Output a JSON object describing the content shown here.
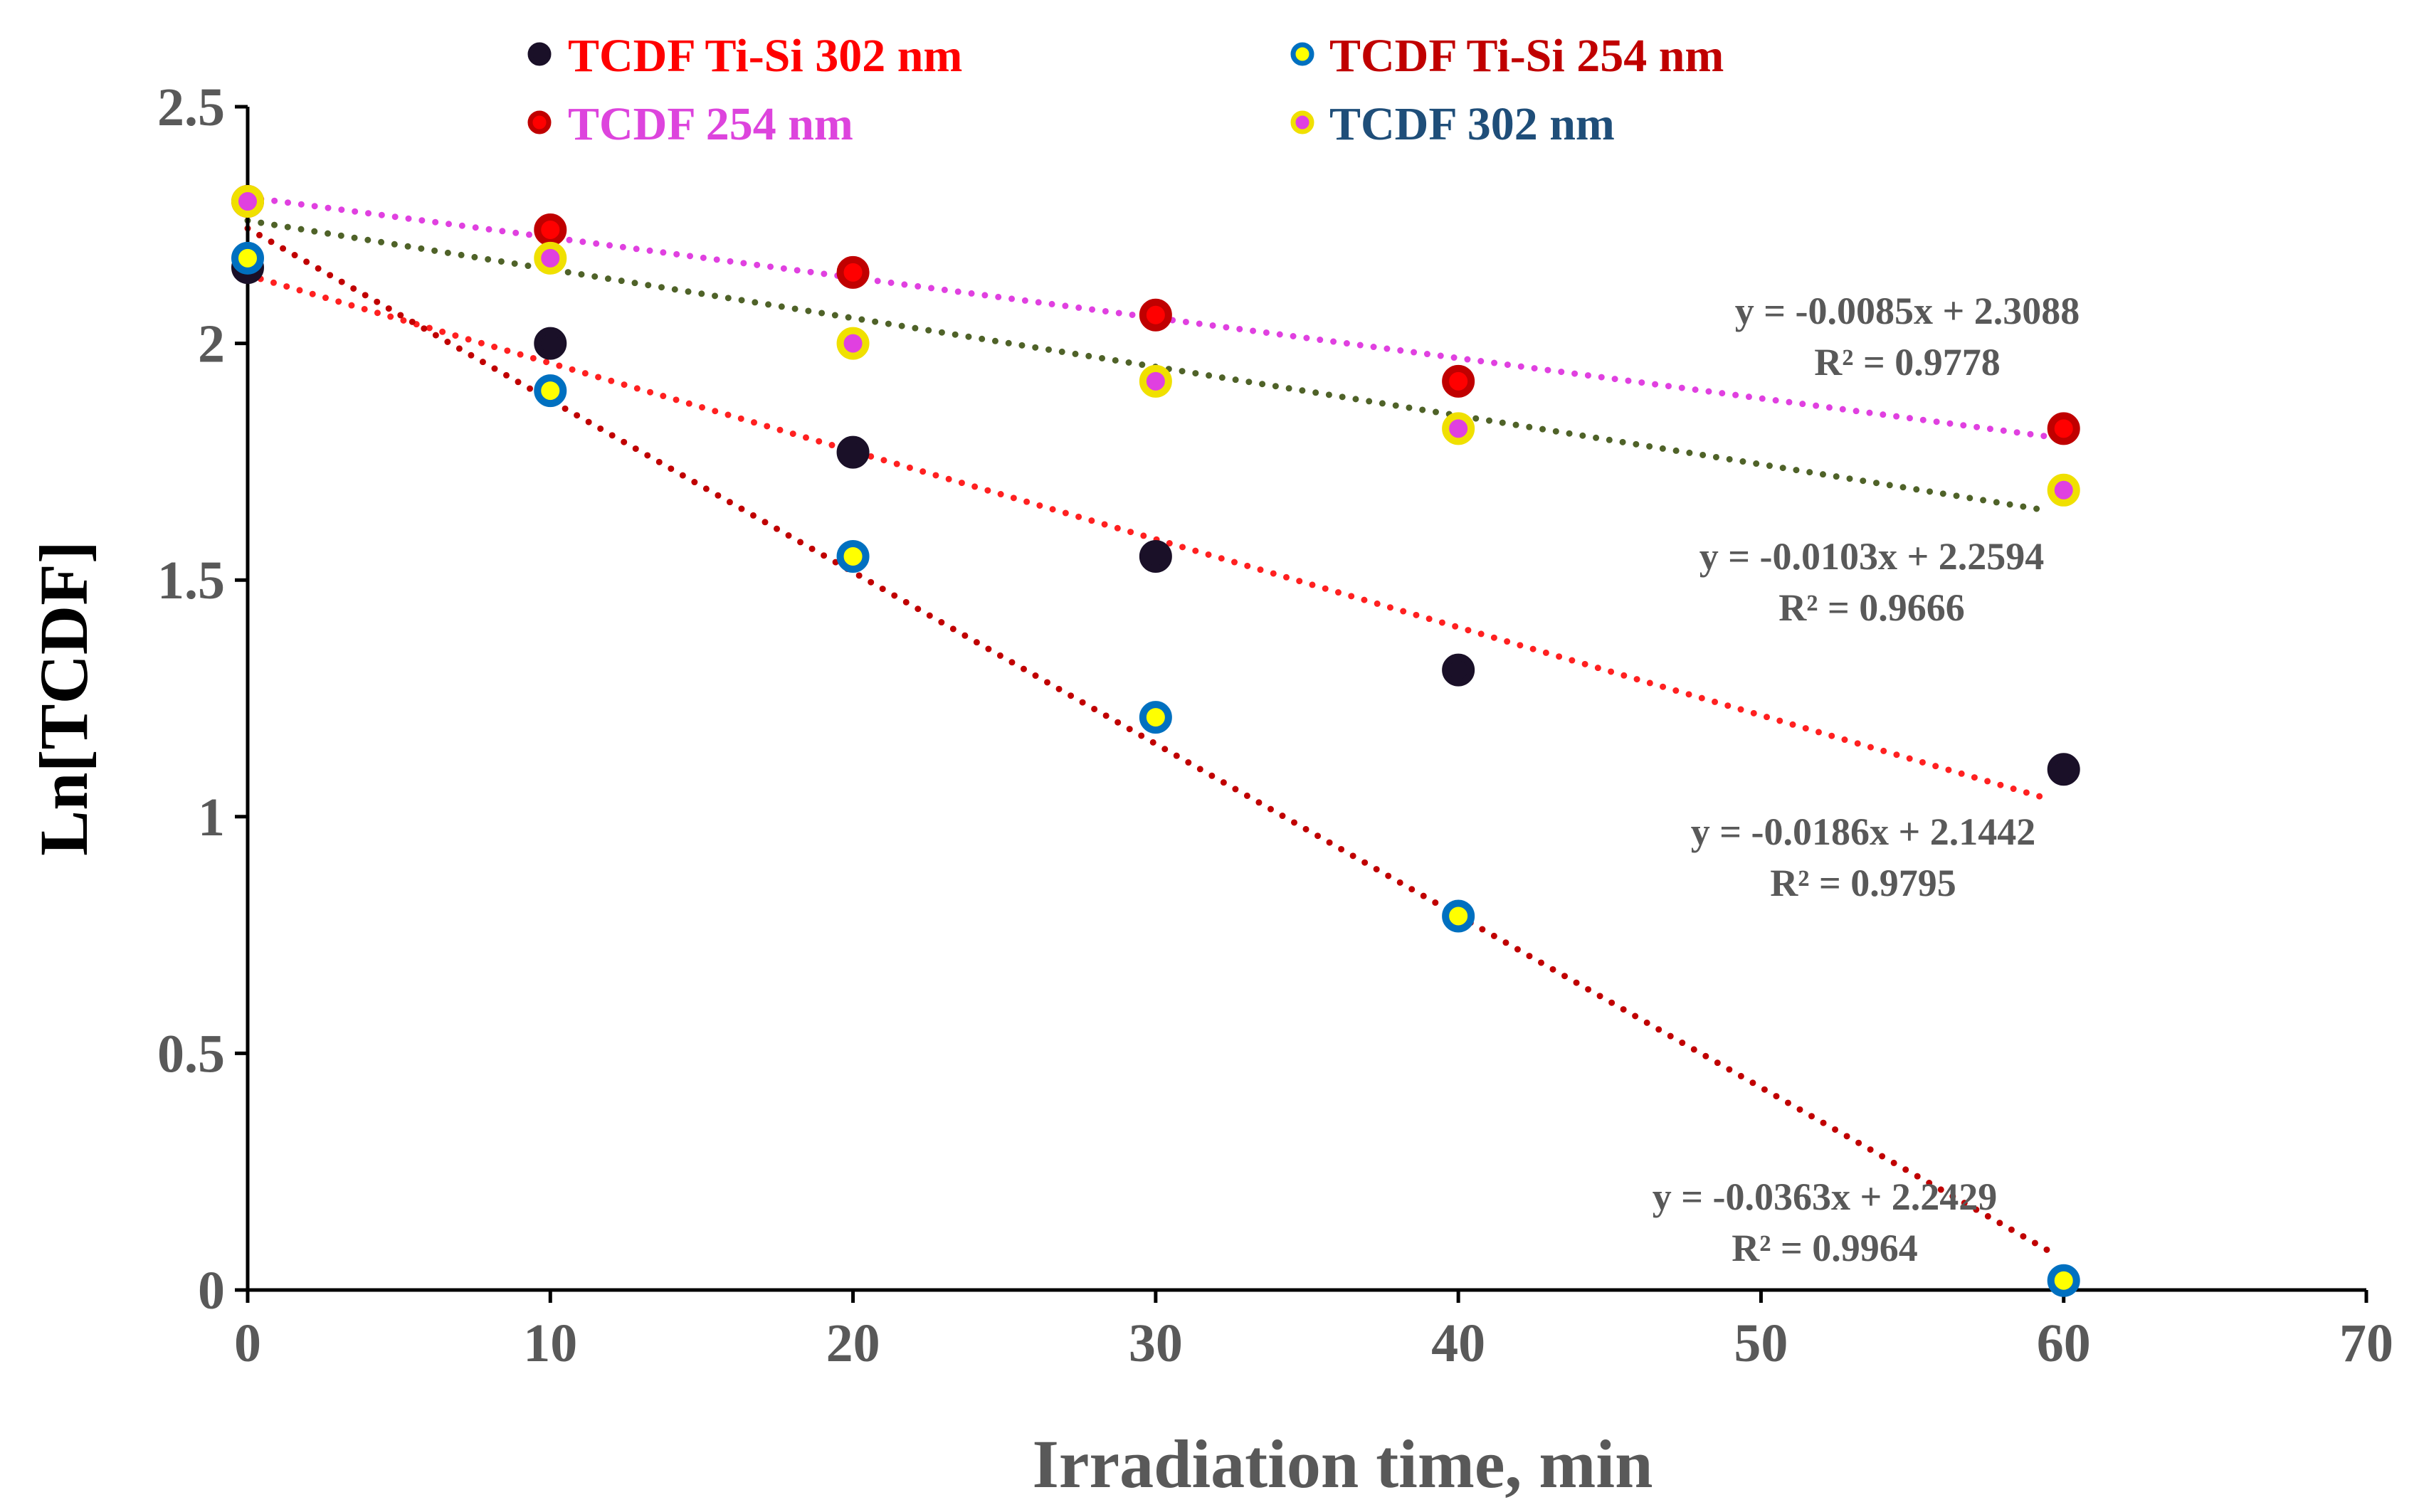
{
  "chart_data": {
    "type": "scatter",
    "title": "",
    "xlabel": "Irradiation time, min",
    "ylabel": "Ln[TCDF]",
    "xlim": [
      0,
      70
    ],
    "ylim": [
      0,
      2.5
    ],
    "xticks": [
      "0",
      "10",
      "20",
      "30",
      "40",
      "50",
      "60",
      "70"
    ],
    "yticks": [
      "0",
      "0.5",
      "1",
      "1.5",
      "2",
      "2.5"
    ],
    "grid": false,
    "legend_position": "top",
    "series": [
      {
        "name": "TCDF Ti-Si 302 nm",
        "x": [
          0,
          10,
          20,
          30,
          40,
          60
        ],
        "y": [
          2.16,
          2.0,
          1.77,
          1.55,
          1.31,
          1.1
        ],
        "marker_fill": "#1a1028",
        "marker_ring": "#1a1028",
        "legend_color": "#ff0000",
        "trend_color": "#ff2020",
        "trend": {
          "slope": -0.0186,
          "intercept": 2.1442
        },
        "equation": "y = -0.0186x + 2.1442",
        "r2": "R² = 0.9795"
      },
      {
        "name": "TCDF Ti-Si 254 nm",
        "x": [
          0,
          10,
          20,
          30,
          40,
          60
        ],
        "y": [
          2.18,
          1.9,
          1.55,
          1.21,
          0.79,
          0.02
        ],
        "marker_fill": "#ffff00",
        "marker_ring": "#0070c0",
        "legend_color": "#c00000",
        "trend_color": "#c00000",
        "trend": {
          "slope": -0.0363,
          "intercept": 2.2429
        },
        "equation": "y = -0.0363x + 2.2429",
        "r2": "R² = 0.9964"
      },
      {
        "name": "TCDF 254 nm",
        "x": [
          0,
          10,
          20,
          30,
          40,
          60
        ],
        "y": [
          2.3,
          2.24,
          2.15,
          2.06,
          1.92,
          1.82
        ],
        "marker_fill": "#ff0000",
        "marker_ring": "#c00000",
        "legend_color": "#dd44dd",
        "trend_color": "#e040e0",
        "trend": {
          "slope": -0.0085,
          "intercept": 2.3088
        },
        "equation": "y = -0.0085x + 2.3088",
        "r2": "R² = 0.9778"
      },
      {
        "name": "TCDF 302 nm",
        "x": [
          0,
          10,
          20,
          30,
          40,
          60
        ],
        "y": [
          2.3,
          2.18,
          2.0,
          1.92,
          1.82,
          1.69
        ],
        "marker_fill": "#e040e0",
        "marker_ring": "#f0e000",
        "legend_color": "#1f4e79",
        "trend_color": "#4f6228",
        "trend": {
          "slope": -0.0103,
          "intercept": 2.2594
        },
        "equation": "y = -0.0103x + 2.2594",
        "r2": "R² = 0.9666"
      }
    ]
  }
}
